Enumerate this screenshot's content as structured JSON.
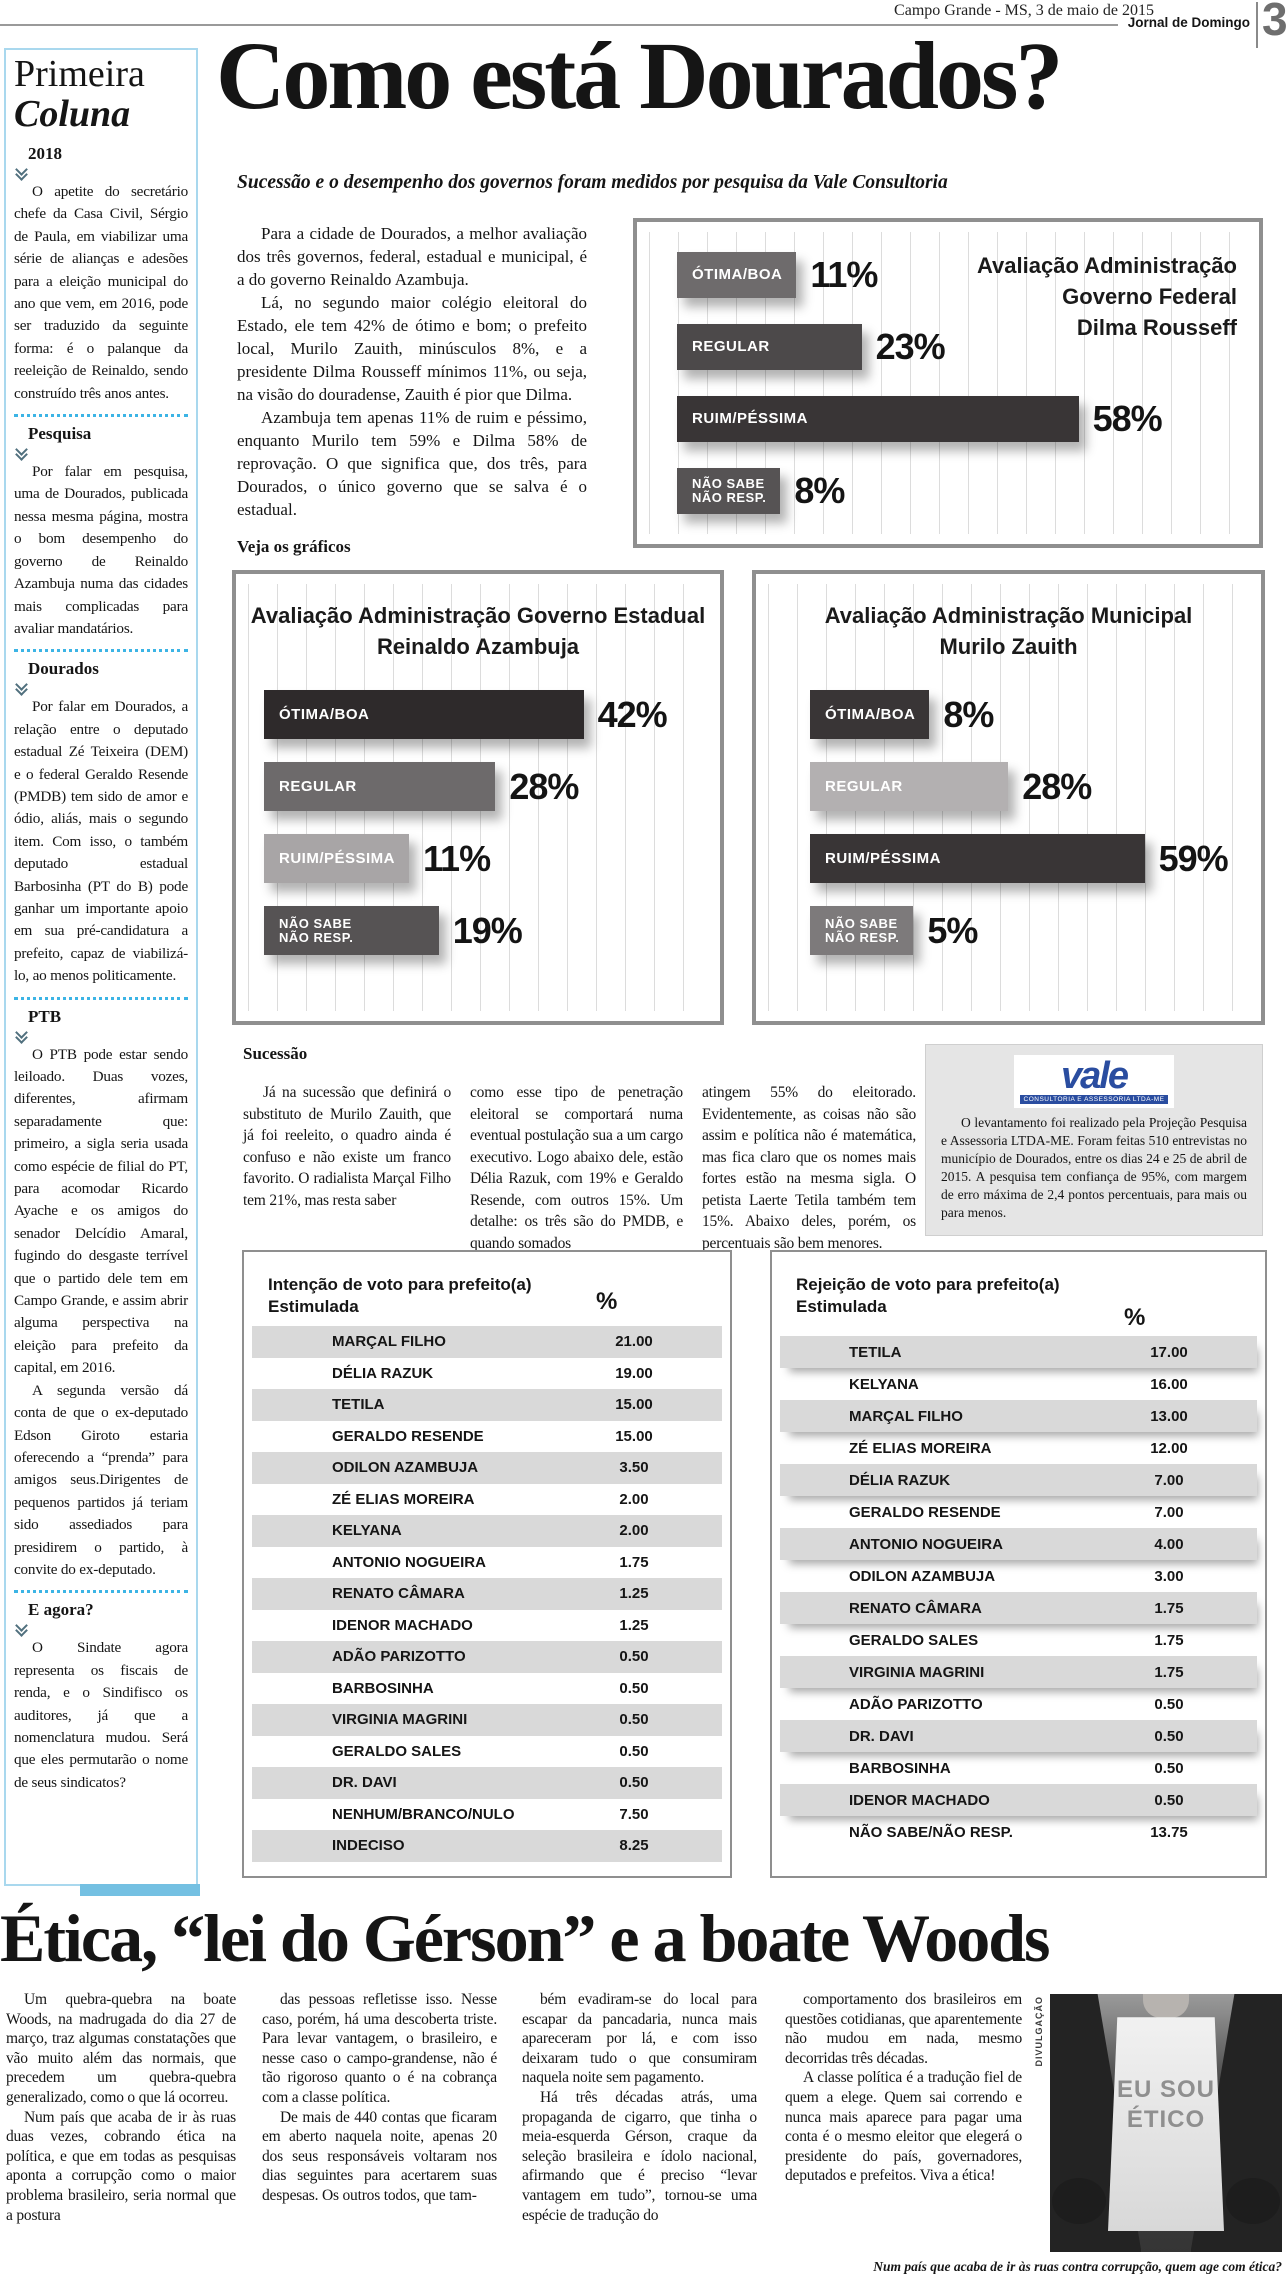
{
  "header": {
    "date": "Campo Grande - MS, 3 de maio de 2015",
    "newspaper": "Jornal de Domingo",
    "page_number": "3"
  },
  "sidebar": {
    "title_line1": "Primeira",
    "title_line2": "Coluna",
    "sections": [
      {
        "heading": "2018",
        "paragraphs": [
          "O apetite do secretário chefe da Casa Civil, Sérgio de Paula, em viabilizar uma série de alianças e adesões para a eleição municipal do ano que vem, em 2016, pode ser traduzido da seguinte forma: é o palanque da reeleição de Reinaldo, sendo construído três anos antes."
        ]
      },
      {
        "heading": "Pesquisa",
        "paragraphs": [
          "Por falar em pesquisa, uma de Dourados, publicada nessa mesma página, mostra o bom desempenho do governo de Reinaldo Azambuja numa das cidades mais complicadas para avaliar mandatários."
        ]
      },
      {
        "heading": "Dourados",
        "paragraphs": [
          "Por falar em Dourados, a relação entre o deputado estadual Zé Teixeira (DEM) e o federal Geraldo Resende (PMDB) tem sido de amor e ódio, aliás, mais o segundo item. Com isso, o também deputado estadual Barbosinha (PT do B) pode ganhar um importante apoio em sua pré-candidatura a prefeito, capaz de viabilizá-lo, ao menos politicamente."
        ]
      },
      {
        "heading": "PTB",
        "paragraphs": [
          "O PTB pode estar sendo leiloado. Duas vozes, diferentes, afirmam separadamente que: primeiro, a sigla seria usada como espécie de filial do PT, para acomodar Ricardo Ayache e os amigos do senador Delcídio Amaral, fugindo do desgaste terrível que o partido dele tem em Campo Grande, e assim abrir alguma perspectiva na eleição para prefeito da capital, em 2016.",
          "A segunda versão dá conta de que o ex-deputado Edson Giroto estaria oferecendo a “prenda” para amigos seus.Dirigentes de pequenos partidos já teriam sido assediados para presidirem o partido, à convite do ex-deputado."
        ]
      },
      {
        "heading": "E agora?",
        "paragraphs": [
          "O Sindate agora representa os fiscais de renda, e o Sindifisco os auditores, já que a nomenclatura mudou. Será que eles permutarão o nome de seus sindicatos?"
        ]
      }
    ]
  },
  "main": {
    "headline": "Como está Dourados?",
    "subhead": "Sucessão e o desempenho dos governos foram medidos por pesquisa da Vale Consultoria",
    "intro": [
      "Para a cidade de Dourados, a melhor avaliação dos três governos, federal, estadual e municipal, é a do governo Reinaldo Azambuja.",
      "Lá, no segundo maior colégio eleitoral do Estado, ele tem 42% de ótimo e bom; o prefeito local, Murilo Zauith, minúsculos 8%, e a presidente Dilma Rousseff mínimos 11%, ou seja, na visão do douradense, Zauith é pior que Dilma.",
      "Azambuja tem apenas 11% de ruim e péssimo, enquanto Murilo tem 59% e Dilma 58% de reprovação. O que significa que, dos três, para Dourados, o único governo que se salva é o estadual."
    ],
    "see_charts": "Veja os gráficos"
  },
  "chart_data": [
    {
      "type": "bar",
      "orientation": "horizontal",
      "grid": "vertical-lines",
      "xlim": [
        0,
        100
      ],
      "title_lines": [
        "Avaliação Administração",
        "Governo Federal",
        "Dilma Rousseff"
      ],
      "categories": [
        "ÓTIMA/BOA",
        "REGULAR",
        "RUIM/PÉSSIMA",
        "NÃO SABE NÃO RESP."
      ],
      "values": [
        11,
        23,
        58,
        8
      ],
      "bars": [
        {
          "label": "ÓTIMA/BOA",
          "value": 11,
          "display": "11%"
        },
        {
          "label": "REGULAR",
          "value": 23,
          "display": "23%"
        },
        {
          "label": "RUIM/PÉSSIMA",
          "value": 58,
          "display": "58%"
        },
        {
          "label": "NÃO SABE\nNÃO RESP.",
          "value": 8,
          "display": "8%"
        }
      ]
    },
    {
      "type": "bar",
      "orientation": "horizontal",
      "grid": "vertical-lines",
      "xlim": [
        0,
        100
      ],
      "title_lines": [
        "Avaliação Administração Governo Estadual",
        "Reinaldo Azambuja"
      ],
      "categories": [
        "ÓTIMA/BOA",
        "REGULAR",
        "RUIM/PÉSSIMA",
        "NÃO SABE NÃO RESP."
      ],
      "values": [
        42,
        28,
        11,
        19
      ],
      "bars": [
        {
          "label": "ÓTIMA/BOA",
          "value": 42,
          "display": "42%"
        },
        {
          "label": "REGULAR",
          "value": 28,
          "display": "28%"
        },
        {
          "label": "RUIM/PÉSSIMA",
          "value": 11,
          "display": "11%"
        },
        {
          "label": "NÃO SABE\nNÃO RESP.",
          "value": 19,
          "display": "19%"
        }
      ]
    },
    {
      "type": "bar",
      "orientation": "horizontal",
      "grid": "vertical-lines",
      "xlim": [
        0,
        100
      ],
      "title_lines": [
        "Avaliação Administração Municipal",
        "Murilo Zauith"
      ],
      "categories": [
        "ÓTIMA/BOA",
        "REGULAR",
        "RUIM/PÉSSIMA",
        "NÃO SABE NÃO RESP."
      ],
      "values": [
        8,
        28,
        59,
        5
      ],
      "bars": [
        {
          "label": "ÓTIMA/BOA",
          "value": 8,
          "display": "8%"
        },
        {
          "label": "REGULAR",
          "value": 28,
          "display": "28%"
        },
        {
          "label": "RUIM/PÉSSIMA",
          "value": 59,
          "display": "59%"
        },
        {
          "label": "NÃO SABE\nNÃO RESP.",
          "value": 5,
          "display": "5%"
        }
      ]
    }
  ],
  "succession": {
    "heading": "Sucessão",
    "columns": [
      "Já na sucessão que definirá o substituto de Murilo Zauith, que já foi reeleito, o quadro ainda é confuso e não existe um franco favorito. O radialista Marçal Filho tem 21%, mas resta saber",
      "como esse tipo de penetração eleitoral se comportará numa eventual postulação sua a um cargo executivo. Logo abaixo dele, estão Délia Razuk, com 19% e Geraldo Resende, com outros 15%. Um detalhe: os três são do PMDB, e quando somados",
      "atingem 55% do eleitorado. Evidentemente, as coisas não são assim e política não é matemática, mas fica claro que os nomes mais fortes estão na mesma sigla. O petista Laerte Tetila também tem 15%. Abaixo deles, porém, os percentuais são bem menores."
    ]
  },
  "vale": {
    "logo": "vale",
    "logo_sub": "CONSULTORIA E ASSESSORIA LTDA-ME",
    "text": "O levantamento foi realizado pela Projeção Pesquisa e Assessoria LTDA-ME. Foram feitas 510 entrevistas no município de Dourados, entre os dias 24 e 25 de abril de 2015. A pesquisa tem confiança de 95%, com margem de erro máxima de 2,4 pontos percentuais, para mais ou para menos."
  },
  "tables": [
    {
      "title": "Intenção de voto para prefeito(a)",
      "subtitle": "Estimulada",
      "percent_label": "%",
      "rows": [
        {
          "name": "MARÇAL FILHO",
          "value": "21.00"
        },
        {
          "name": "DÉLIA RAZUK",
          "value": "19.00"
        },
        {
          "name": "TETILA",
          "value": "15.00"
        },
        {
          "name": "GERALDO RESENDE",
          "value": "15.00"
        },
        {
          "name": "ODILON AZAMBUJA",
          "value": "3.50"
        },
        {
          "name": "ZÉ ELIAS MOREIRA",
          "value": "2.00"
        },
        {
          "name": "KELYANA",
          "value": "2.00"
        },
        {
          "name": "ANTONIO NOGUEIRA",
          "value": "1.75"
        },
        {
          "name": "RENATO CÂMARA",
          "value": "1.25"
        },
        {
          "name": "IDENOR MACHADO",
          "value": "1.25"
        },
        {
          "name": "ADÃO PARIZOTTO",
          "value": "0.50"
        },
        {
          "name": "BARBOSINHA",
          "value": "0.50"
        },
        {
          "name": "VIRGINIA MAGRINI",
          "value": "0.50"
        },
        {
          "name": "GERALDO SALES",
          "value": "0.50"
        },
        {
          "name": "DR. DAVI",
          "value": "0.50"
        },
        {
          "name": "NENHUM/BRANCO/NULO",
          "value": "7.50"
        },
        {
          "name": "INDECISO",
          "value": "8.25"
        }
      ]
    },
    {
      "title": "Rejeição de voto para prefeito(a)",
      "subtitle": "Estimulada",
      "percent_label": "%",
      "rows": [
        {
          "name": "TETILA",
          "value": "17.00"
        },
        {
          "name": "KELYANA",
          "value": "16.00"
        },
        {
          "name": "MARÇAL FILHO",
          "value": "13.00"
        },
        {
          "name": "ZÉ ELIAS MOREIRA",
          "value": "12.00"
        },
        {
          "name": "DÉLIA RAZUK",
          "value": "7.00"
        },
        {
          "name": "GERALDO RESENDE",
          "value": "7.00"
        },
        {
          "name": "ANTONIO NOGUEIRA",
          "value": "4.00"
        },
        {
          "name": "ODILON AZAMBUJA",
          "value": "3.00"
        },
        {
          "name": "RENATO CÂMARA",
          "value": "1.75"
        },
        {
          "name": "GERALDO SALES",
          "value": "1.75"
        },
        {
          "name": "VIRGINIA MAGRINI",
          "value": "1.75"
        },
        {
          "name": "ADÃO PARIZOTTO",
          "value": "0.50"
        },
        {
          "name": "DR. DAVI",
          "value": "0.50"
        },
        {
          "name": "BARBOSINHA",
          "value": "0.50"
        },
        {
          "name": "IDENOR MACHADO",
          "value": "0.50"
        },
        {
          "name": "NÃO SABE/NÃO RESP.",
          "value": "13.75"
        }
      ]
    }
  ],
  "bottom": {
    "headline": "Ética, “lei do Gérson” e a boate Woods",
    "columns": [
      [
        "Um quebra-quebra na boate Woods, na madrugada do dia 27 de março, traz algumas constatações que vão muito além das normais, que precedem um quebra-quebra generalizado, como o que lá ocorreu.",
        "Num país que acaba de ir às ruas duas vezes, cobrando ética na política, e que em todas as pesquisas aponta a corrupção como o maior problema brasileiro, seria normal que a postura"
      ],
      [
        "das pessoas refletisse isso. Nesse caso, porém, há uma descoberta triste. Para levar vantagem, o brasileiro, e nesse caso o campo-grandense, não é tão rigoroso quanto o é na cobrança com a classe política.",
        "De mais de 440 contas que ficaram em aberto naquela noite, apenas 20 dos seus responsáveis voltaram nos dias seguintes para acertarem suas despesas. Os outros todos, que tam-"
      ],
      [
        "bém evadiram-se do local para escapar da pancadaria, nunca mais apareceram por lá, e com isso deixaram tudo o que consumiram naquela noite sem pagamento.",
        "Há três décadas atrás, uma propaganda de cigarro, que tinha o meia-esquerda Gérson, craque da seleção brasileira e ídolo nacional, afirmando que é preciso “levar vantagem em tudo”, tornou-se uma espécie de tradução do"
      ],
      [
        "comportamento dos brasileiros em questões cotidianas, que aparentemente não mudou em nada, mesmo decorridas três décadas.",
        "A classe política é a tradução fiel de quem a elege. Quem sai correndo e nunca mais aparece para pagar uma conta é o mesmo eleitor que elegerá o presidente do país, governadores, deputados e prefeitos. Viva a ética!"
      ]
    ],
    "photo": {
      "credit": "DIVULGAÇÃO",
      "shirt_line1": "EU SOU",
      "shirt_line2": "ÉTICO",
      "caption": "Num país que acaba de ir às ruas contra corrupção, quem age com ética?"
    }
  },
  "colors": {
    "accent_cyan": "#3cb4e5",
    "sidebar_border": "#a9d8ee",
    "sidebar_blue_bar": "#74c0e2",
    "vale_blue": "#2a4da0",
    "table_band_gray": "#d9d9d9",
    "bar_darkest": "#393536",
    "bar_dark": "#4c494a",
    "bar_mid": "#6e6b6c",
    "bar_light": "#a8a5a6",
    "bar_lighter": "#b3b0b1"
  }
}
